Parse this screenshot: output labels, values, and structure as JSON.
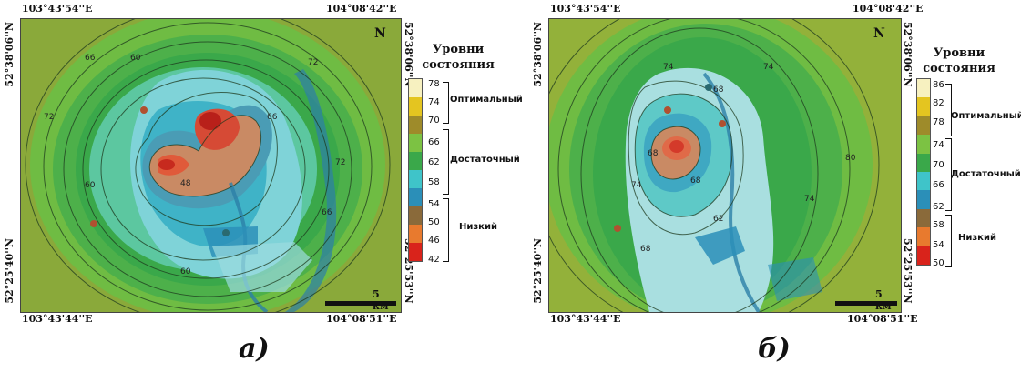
{
  "panel_a": {
    "label": "а)",
    "coord_top_left": "103°43'54''E",
    "coord_top_right": "104°08'42''E",
    "coord_bottom_left": "103°43'44''E",
    "coord_bottom_right": "104°08'51''E",
    "lat_top_left": "52°38'06''N",
    "lat_top_right": "52°38'06''N",
    "lat_bottom_left": "52°25'40''N",
    "lat_bottom_right": "52°25'53''N",
    "north": "N",
    "scale": "5 км",
    "legend_title_line1": "Уровни",
    "legend_title_line2": "состояния",
    "legend_ticks": [
      "78",
      "74",
      "70",
      "66",
      "62",
      "58",
      "54",
      "50",
      "46",
      "42"
    ],
    "levels": [
      "Оптимальный",
      "Достаточный",
      "Низкий"
    ],
    "contour_labels": [
      "66",
      "60",
      "72",
      "72",
      "66",
      "60",
      "48",
      "72",
      "66",
      "60"
    ]
  },
  "panel_b": {
    "label": "б)",
    "coord_top_left": "103°43'54''E",
    "coord_top_right": "104°08'42''E",
    "coord_bottom_left": "103°43'44''E",
    "coord_bottom_right": "104°08'51''E",
    "lat_top_left": "52°38'06''N",
    "lat_top_right": "52°38'06''N",
    "lat_bottom_left": "52°25'40''N",
    "lat_bottom_right": "52°25'53''N",
    "north": "N",
    "scale": "5 км",
    "legend_title_line1": "Уровни",
    "legend_title_line2": "состояния",
    "legend_ticks": [
      "86",
      "82",
      "78",
      "74",
      "70",
      "66",
      "62",
      "58",
      "54",
      "50"
    ],
    "levels": [
      "Оптимальный",
      "Достаточный",
      "Низкий"
    ],
    "contour_labels": [
      "74",
      "74",
      "68",
      "68",
      "80",
      "74",
      "68",
      "62",
      "68",
      "74"
    ]
  },
  "colors": {
    "low_red": "#d9231b",
    "low_orange": "#e87a2e",
    "low_brown": "#8a6a3a",
    "low_blue": "#2b8fb8",
    "mid_cyan": "#3fc4c9",
    "mid_green": "#3aa84a",
    "mid_lightgreen": "#7cc243",
    "opt_yellow": "#e4c520",
    "opt_olive": "#9e8b2a",
    "opt_pale": "#f7f1c0"
  }
}
